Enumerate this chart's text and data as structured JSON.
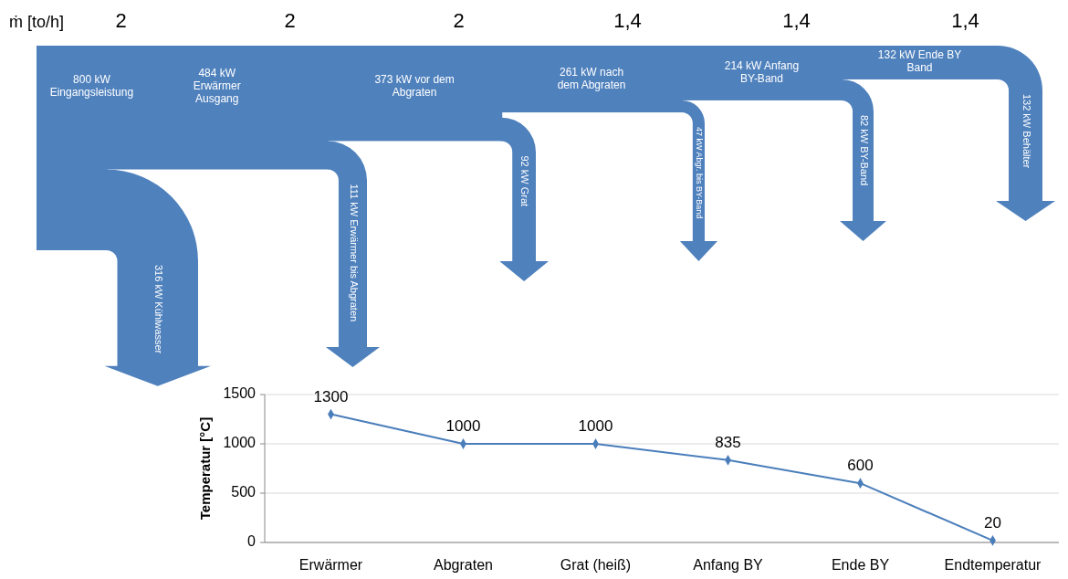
{
  "chart_data": [
    {
      "type": "other",
      "title": "ṁ [to/h]",
      "categories": [
        "2",
        "2",
        "2",
        "1,4",
        "1,4",
        "1,4"
      ],
      "series": [
        {
          "color": "#4f81bd",
          "values": [
            800,
            484,
            373,
            261,
            214,
            132
          ],
          "value_labels": [
            "800 kW Eingangsleistung",
            "484 kW Erwärmer Ausgang",
            "373 kW vor dem Abgraten",
            "261 kW nach dem Abgraten",
            "214 kW Anfang BY-Band",
            "132 kW Ende BY Band"
          ]
        },
        {
          "color": "#4f81bd",
          "values": [
            316,
            111,
            92,
            47,
            82,
            132
          ],
          "value_labels": [
            "316 kW Kühlwasser",
            "111 kW Erwärmer bis Abgraten",
            "92 kW Grat",
            "47 kW Abgr. bis BY-Band",
            "82 kW BY-Band",
            "132 kW Behälter"
          ]
        }
      ]
    },
    {
      "type": "line",
      "ylabel": "Temperatur [°C]",
      "categories": [
        "Erwärmer",
        "Abgraten",
        "Grat (heiß)",
        "Anfang BY",
        "Ende BY",
        "Endtemperatur"
      ],
      "series": [
        {
          "color": "#4a7ebb",
          "values": [
            1300,
            1000,
            1000,
            835,
            600,
            20
          ]
        }
      ],
      "ylim": [
        0,
        1500
      ],
      "yticks": [
        0,
        500,
        1000,
        1500
      ],
      "grid": "y",
      "marker": "diamond",
      "data_labels": true
    }
  ]
}
